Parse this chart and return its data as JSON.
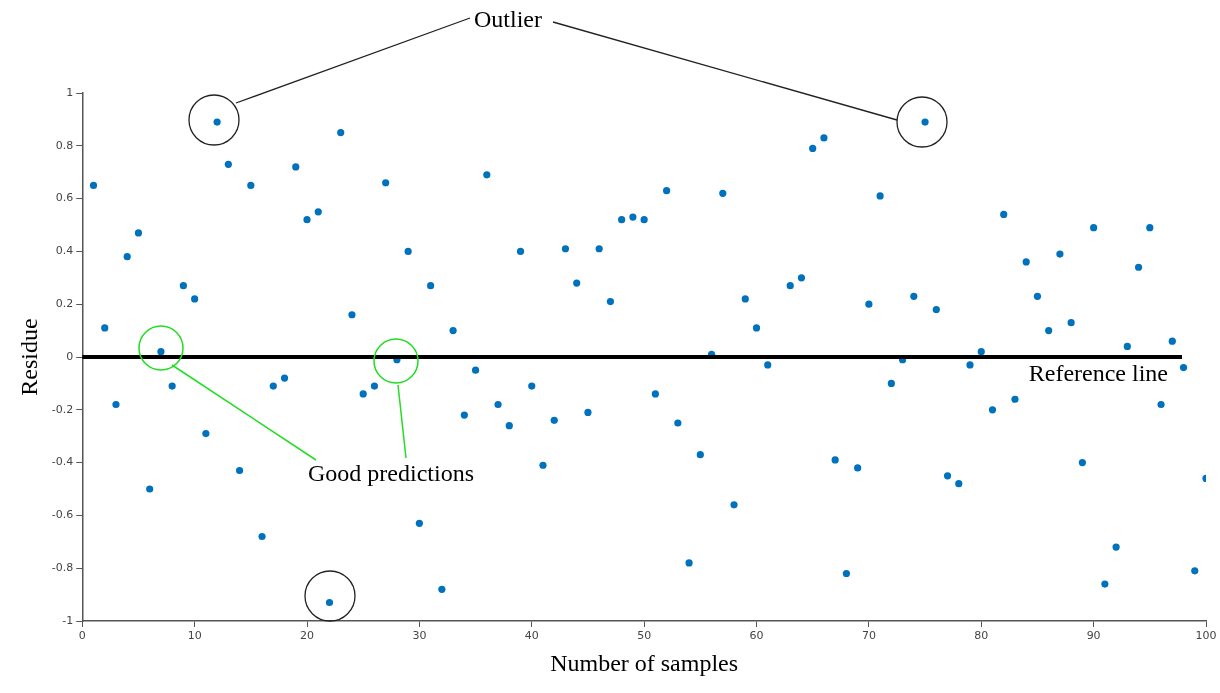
{
  "chart_data": {
    "type": "scatter",
    "xlabel": "Number of samples",
    "ylabel": "Residue",
    "x": [
      1,
      2,
      3,
      4,
      5,
      6,
      7,
      8,
      9,
      10,
      11,
      12,
      13,
      14,
      15,
      16,
      17,
      18,
      19,
      20,
      21,
      22,
      23,
      24,
      25,
      26,
      27,
      28,
      29,
      30,
      31,
      32,
      33,
      34,
      35,
      36,
      37,
      38,
      39,
      40,
      41,
      42,
      43,
      44,
      45,
      46,
      47,
      48,
      49,
      50,
      51,
      52,
      53,
      54,
      55,
      56,
      57,
      58,
      59,
      60,
      61,
      63,
      64,
      65,
      66,
      67,
      68,
      69,
      70,
      71,
      72,
      73,
      74,
      75,
      76,
      77,
      78,
      79,
      80,
      81,
      82,
      83,
      84,
      85,
      86,
      87,
      88,
      89,
      90,
      91,
      92,
      93,
      94,
      95,
      96,
      97,
      98,
      99,
      100
    ],
    "series": [
      {
        "color": "#0072bd",
        "values": [
          0.65,
          0.11,
          -0.18,
          0.38,
          0.47,
          -0.5,
          0.02,
          -0.11,
          0.27,
          0.22,
          -0.29,
          0.89,
          0.73,
          -0.43,
          0.65,
          -0.68,
          -0.11,
          -0.08,
          0.72,
          0.52,
          0.55,
          -0.93,
          0.85,
          0.16,
          -0.14,
          -0.11,
          0.66,
          -0.01,
          0.4,
          -0.63,
          0.27,
          -0.88,
          0.1,
          -0.22,
          -0.05,
          0.69,
          -0.18,
          -0.26,
          0.4,
          -0.11,
          -0.41,
          -0.24,
          0.41,
          0.28,
          -0.21,
          0.41,
          0.21,
          0.52,
          0.53,
          0.52,
          -0.14,
          0.63,
          -0.25,
          -0.78,
          -0.37,
          0.01,
          0.62,
          -0.56,
          0.22,
          0.11,
          -0.03,
          0.27,
          0.3,
          0.79,
          0.83,
          -0.39,
          -0.82,
          -0.42,
          0.2,
          0.61,
          -0.1,
          -0.01,
          0.23,
          0.89,
          0.18,
          -0.45,
          -0.48,
          -0.03,
          0.02,
          -0.2,
          0.54,
          -0.16,
          0.36,
          0.23,
          0.1,
          0.39,
          0.13,
          -0.4,
          0.49,
          -0.86,
          -0.72,
          0.04,
          0.34,
          0.49,
          -0.18,
          0.06,
          -0.04,
          -0.81,
          -0.46
        ]
      }
    ],
    "xlim": [
      0,
      100
    ],
    "xticks": [
      0,
      10,
      20,
      30,
      40,
      50,
      60,
      70,
      80,
      90,
      100
    ],
    "ylim": [
      -1,
      1
    ],
    "yticks": [
      -1,
      -0.8,
      -0.6,
      -0.4,
      -0.2,
      0,
      0.2,
      0.4,
      0.6,
      0.8,
      1
    ],
    "ref_lines": [
      {
        "axis": "y",
        "value": 0,
        "label": "Reference line",
        "color": "#000000"
      }
    ],
    "annotations": [
      "Outlier",
      "Good predictions"
    ],
    "grid": false,
    "legend": false,
    "marker": "circle"
  }
}
